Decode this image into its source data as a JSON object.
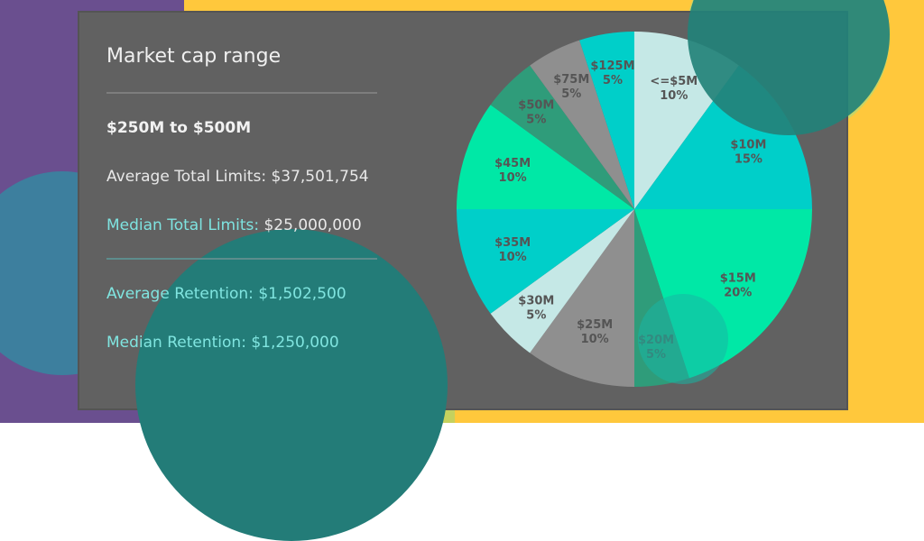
{
  "card": {
    "title": "Market cap range",
    "range_label": "$250M to $500M",
    "avg_total_limits": "Average Total Limits: $37,501,754",
    "med_total_limits_label": "Median Total Limits:",
    "med_total_limits_value": "$25,000,000",
    "avg_retention": "Average Retention: $1,502,500",
    "med_retention": "Median Retention: $1,250,000"
  },
  "colors": {
    "panel": "#616161",
    "teal": "#00cfc9",
    "green": "#00e8a6",
    "gray": "#8f8f8f",
    "pale": "#c5e8e6",
    "dark_green": "#2f9c7a",
    "label": "#555555"
  },
  "chart_data": {
    "type": "pie",
    "slices": [
      {
        "label": "<=$5M",
        "pct": "10%",
        "value": 10,
        "color": "#c5e8e6"
      },
      {
        "label": "$10M",
        "pct": "15%",
        "value": 15,
        "color": "#00cfc9"
      },
      {
        "label": "$15M",
        "pct": "20%",
        "value": 20,
        "color": "#00e8a6"
      },
      {
        "label": "$20M",
        "pct": "5%",
        "value": 5,
        "color": "#2f9c7a"
      },
      {
        "label": "$25M",
        "pct": "10%",
        "value": 10,
        "color": "#8f8f8f"
      },
      {
        "label": "$30M",
        "pct": "5%",
        "value": 5,
        "color": "#c5e8e6"
      },
      {
        "label": "$35M",
        "pct": "10%",
        "value": 10,
        "color": "#00cfc9"
      },
      {
        "label": "$45M",
        "pct": "10%",
        "value": 10,
        "color": "#00e8a6"
      },
      {
        "label": "$50M",
        "pct": "5%",
        "value": 5,
        "color": "#2f9c7a"
      },
      {
        "label": "$75M",
        "pct": "5%",
        "value": 5,
        "color": "#8f8f8f"
      },
      {
        "label": "$125M",
        "pct": "5%",
        "value": 5,
        "color": "#00cfc9"
      }
    ]
  }
}
